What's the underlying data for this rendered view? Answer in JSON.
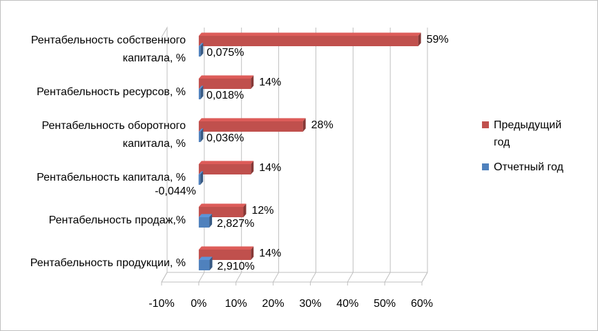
{
  "chart_data": {
    "type": "bar",
    "orientation": "horizontal",
    "three_d": true,
    "categories": [
      "Рентабельность собственного капитала, %",
      "Рентабельность ресурсов, %",
      "Рентабельность оборотного капитала, %",
      "Рентабельность капитала, %",
      "Рентабельность продаж,%",
      "Рентабельность продукции, %"
    ],
    "category_lines": [
      [
        "Рентабельность собственного",
        "капитала, %"
      ],
      [
        "Рентабельность ресурсов, %"
      ],
      [
        "Рентабельность оборотного",
        "капитала, %"
      ],
      [
        "Рентабельность капитала, %"
      ],
      [
        "Рентабельность продаж,%"
      ],
      [
        "Рентабельность продукции, %"
      ]
    ],
    "series": [
      {
        "name": "Предыдущий год",
        "name_lines": [
          "Предыдущий",
          "год"
        ],
        "color": "#c0504d",
        "values": [
          59,
          14,
          28,
          14,
          12,
          14
        ],
        "labels": [
          "59%",
          "14%",
          "28%",
          "14%",
          "12%",
          "14%"
        ]
      },
      {
        "name": "Отчетный год",
        "name_lines": [
          "Отчетный год"
        ],
        "color": "#4f81bd",
        "values": [
          0.075,
          0.018,
          0.036,
          -0.044,
          2.827,
          2.91
        ],
        "labels": [
          "0,075%",
          "0,018%",
          "0,036%",
          "-0,044%",
          "2,827%",
          "2,910%"
        ]
      }
    ],
    "x_ticks": [
      -10,
      0,
      10,
      20,
      30,
      40,
      50,
      60
    ],
    "x_tick_labels": [
      "-10%",
      "0%",
      "10%",
      "20%",
      "30%",
      "40%",
      "50%",
      "60%"
    ],
    "xlim": [
      -10,
      60
    ],
    "grid": true,
    "legend_position": "right"
  }
}
